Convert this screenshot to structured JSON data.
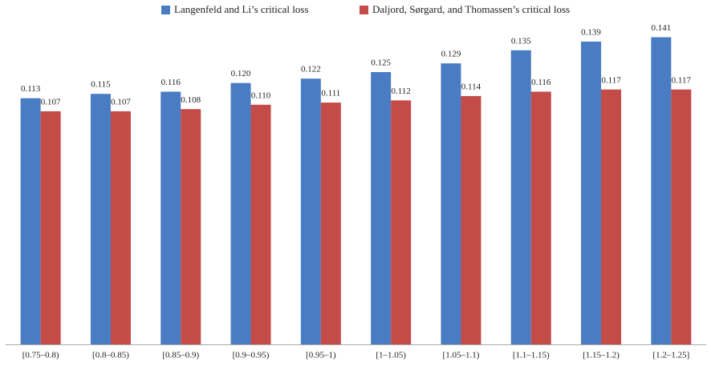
{
  "chart_data": {
    "type": "bar",
    "categories": [
      "[0.75–0.8)",
      "[0.8–0.85)",
      "[0.85–0.9)",
      "[0.9–0.95)",
      "[0.95–1)",
      "[1–1.05)",
      "[1.05–1.1)",
      "[1.1–1.15)",
      "[1.15–1.2)",
      "[1.2–1.25]"
    ],
    "series": [
      {
        "name": "Langenfeld and Li’s critical loss",
        "color": "#4a7cc4",
        "values": [
          0.113,
          0.115,
          0.116,
          0.12,
          0.122,
          0.125,
          0.129,
          0.135,
          0.139,
          0.141
        ],
        "value_labels": [
          "0.113",
          "0.115",
          "0.116",
          "0.120",
          "0.122",
          "0.125",
          "0.129",
          "0.135",
          "0.139",
          "0.141"
        ]
      },
      {
        "name": "Daljord, Sørgard, and Thomassen’s critical loss",
        "color": "#c34b48",
        "values": [
          0.107,
          0.107,
          0.108,
          0.11,
          0.111,
          0.112,
          0.114,
          0.116,
          0.117,
          0.117
        ],
        "value_labels": [
          "0.107",
          "0.107",
          "0.108",
          "0.110",
          "0.111",
          "0.112",
          "0.114",
          "0.116",
          "0.117",
          "0.117"
        ]
      }
    ],
    "ylim": [
      0,
      0.15
    ]
  }
}
